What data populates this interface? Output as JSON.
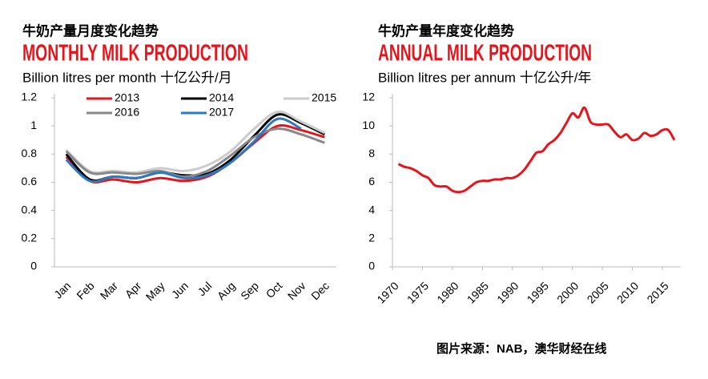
{
  "source": "图片来源：NAB，澳华财经在线",
  "chart_data": [
    {
      "type": "line",
      "cn_title": "牛奶产量月度变化趋势",
      "title": "MONTHLY MILK PRODUCTION",
      "subtitle": "Billion litres per month 十亿公升/月",
      "categories": [
        "Jan",
        "Feb",
        "Mar",
        "Apr",
        "May",
        "Jun",
        "Jul",
        "Aug",
        "Sep",
        "Oct",
        "Nov",
        "Dec"
      ],
      "ylim": [
        0,
        1.2
      ],
      "yticks": [
        0,
        0.2,
        0.4,
        0.6,
        0.8,
        1,
        1.2
      ],
      "series": [
        {
          "name": "2013",
          "color": "#e8141b",
          "values": [
            0.78,
            0.61,
            0.62,
            0.6,
            0.63,
            0.61,
            0.64,
            0.74,
            0.88,
            1.0,
            0.97,
            0.92
          ]
        },
        {
          "name": "2014",
          "color": "#000000",
          "values": [
            0.8,
            0.62,
            0.64,
            0.63,
            0.67,
            0.65,
            0.66,
            0.76,
            0.93,
            1.08,
            1.02,
            0.94
          ]
        },
        {
          "name": "2015",
          "color": "#cccccc",
          "values": [
            0.83,
            0.68,
            0.68,
            0.67,
            0.7,
            0.68,
            0.72,
            0.82,
            0.98,
            1.1,
            1.03,
            0.95
          ]
        },
        {
          "name": "2016",
          "color": "#888888",
          "values": [
            0.82,
            0.67,
            0.67,
            0.66,
            0.68,
            0.64,
            0.68,
            0.79,
            0.92,
            0.98,
            0.94,
            0.88
          ]
        },
        {
          "name": "2017",
          "color": "#2a7bc4",
          "values": [
            0.76,
            0.61,
            0.64,
            0.63,
            0.67,
            0.63,
            0.65,
            0.74,
            0.89,
            1.05,
            0.98,
            null
          ]
        }
      ]
    },
    {
      "type": "line",
      "cn_title": "牛奶产量年度变化趋势",
      "title": "ANNUAL MILK PRODUCTION",
      "subtitle": "Billion litres per annum 十亿公升/年",
      "x": [
        1971,
        1972,
        1973,
        1974,
        1975,
        1976,
        1977,
        1978,
        1979,
        1980,
        1981,
        1982,
        1983,
        1984,
        1985,
        1986,
        1987,
        1988,
        1989,
        1990,
        1991,
        1992,
        1993,
        1994,
        1995,
        1996,
        1997,
        1998,
        1999,
        2000,
        2001,
        2002,
        2003,
        2004,
        2005,
        2006,
        2007,
        2008,
        2009,
        2010,
        2011,
        2012,
        2013,
        2014,
        2015,
        2016,
        2017
      ],
      "xlim": [
        1970,
        2017
      ],
      "xticks": [
        1970,
        1975,
        1980,
        1985,
        1990,
        1995,
        2000,
        2005,
        2010,
        2015
      ],
      "ylim": [
        0,
        12
      ],
      "yticks": [
        0,
        2,
        4,
        6,
        8,
        10,
        12
      ],
      "series": [
        {
          "color": "#e8141b",
          "values": [
            7.3,
            7.1,
            7.0,
            6.8,
            6.5,
            6.3,
            5.8,
            5.7,
            5.7,
            5.4,
            5.3,
            5.4,
            5.7,
            6.0,
            6.1,
            6.1,
            6.2,
            6.2,
            6.3,
            6.3,
            6.5,
            6.9,
            7.5,
            8.1,
            8.2,
            8.7,
            9.0,
            9.5,
            10.2,
            10.9,
            10.6,
            11.3,
            10.3,
            10.1,
            10.1,
            10.1,
            9.6,
            9.2,
            9.4,
            9.0,
            9.1,
            9.5,
            9.3,
            9.4,
            9.7,
            9.7,
            9.0
          ]
        }
      ]
    }
  ]
}
